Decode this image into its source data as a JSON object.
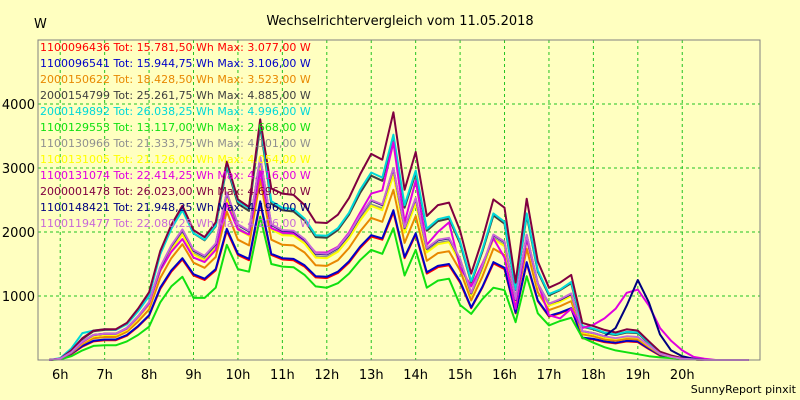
{
  "chart_data": {
    "type": "line",
    "title": "Wechselrichtervergleich vom 11.05.2018",
    "ylabel": "W",
    "xlabel": "",
    "xlim": [
      5.5,
      21.75
    ],
    "ylim": [
      0,
      5000
    ],
    "yticks": [
      1000,
      2000,
      3000,
      4000
    ],
    "xticks": [
      {
        "x": 6,
        "label": "6h"
      },
      {
        "x": 7,
        "label": "7h"
      },
      {
        "x": 8,
        "label": "8h"
      },
      {
        "x": 9,
        "label": "9h"
      },
      {
        "x": 10,
        "label": "10h"
      },
      {
        "x": 11,
        "label": "11h"
      },
      {
        "x": 12,
        "label": "12h"
      },
      {
        "x": 13,
        "label": "13h"
      },
      {
        "x": 14,
        "label": "14h"
      },
      {
        "x": 15,
        "label": "15h"
      },
      {
        "x": 16,
        "label": "16h"
      },
      {
        "x": 17,
        "label": "17h"
      },
      {
        "x": 18,
        "label": "18h"
      },
      {
        "x": 19,
        "label": "19h"
      },
      {
        "x": 20,
        "label": "20h"
      }
    ],
    "grid": true,
    "legend_position": "top-left",
    "x": [
      5.75,
      6,
      6.25,
      6.5,
      6.75,
      7,
      7.25,
      7.5,
      7.75,
      8,
      8.25,
      8.5,
      8.75,
      9,
      9.25,
      9.5,
      9.75,
      10,
      10.25,
      10.5,
      10.75,
      11,
      11.25,
      11.5,
      11.75,
      12,
      12.25,
      12.5,
      12.75,
      13,
      13.25,
      13.5,
      13.75,
      14,
      14.25,
      14.5,
      14.75,
      15,
      15.25,
      15.5,
      15.75,
      16,
      16.25,
      16.5,
      16.75,
      17,
      17.25,
      17.5,
      17.75,
      18,
      18.25,
      18.5,
      18.75,
      19,
      19.25,
      19.5,
      19.75,
      20,
      20.25,
      20.5,
      20.75,
      21,
      21.25,
      21.5
    ],
    "series": [
      {
        "legend": "1100096436 Tot: 15.781,50 Wh Max: 3.077,00 W",
        "color": "#ff0000",
        "values": [
          0,
          20,
          90,
          210,
          290,
          310,
          310,
          380,
          520,
          690,
          1110,
          1380,
          1570,
          1320,
          1250,
          1400,
          2020,
          1640,
          1560,
          2450,
          1640,
          1570,
          1560,
          1460,
          1290,
          1280,
          1360,
          1520,
          1750,
          1930,
          1880,
          2310,
          1590,
          1960,
          1350,
          1450,
          1480,
          1210,
          810,
          1130,
          1510,
          1420,
          730,
          1510,
          920,
          680,
          730,
          800,
          340,
          320,
          280,
          260,
          290,
          280,
          170,
          70,
          40,
          20,
          10,
          0,
          0,
          0,
          0,
          0
        ]
      },
      {
        "legend": "1100096541 Tot: 15.944,75 Wh Max: 3.106,00 W",
        "color": "#0000c8",
        "values": [
          0,
          20,
          100,
          220,
          300,
          320,
          320,
          390,
          530,
          700,
          1130,
          1400,
          1590,
          1340,
          1270,
          1420,
          2050,
          1660,
          1580,
          2480,
          1660,
          1590,
          1580,
          1480,
          1310,
          1300,
          1380,
          1540,
          1770,
          1950,
          1900,
          2340,
          1610,
          1980,
          1370,
          1470,
          1500,
          1230,
          820,
          1140,
          1530,
          1440,
          740,
          1530,
          930,
          690,
          740,
          810,
          350,
          330,
          290,
          270,
          300,
          290,
          180,
          80,
          40,
          20,
          10,
          0,
          0,
          0,
          0,
          0
        ]
      },
      {
        "legend": "2000150622 Tot: 18.428,50 Wh Max: 3.523,00 W",
        "color": "#e88800",
        "values": [
          0,
          20,
          110,
          250,
          340,
          360,
          360,
          440,
          600,
          790,
          1280,
          1590,
          1810,
          1520,
          1440,
          1610,
          2320,
          1880,
          1790,
          2820,
          1880,
          1800,
          1790,
          1680,
          1480,
          1470,
          1560,
          1750,
          2010,
          2220,
          2160,
          2660,
          1830,
          2250,
          1550,
          1670,
          1700,
          1400,
          930,
          1300,
          1740,
          1640,
          840,
          1740,
          1060,
          780,
          840,
          920,
          400,
          370,
          320,
          300,
          330,
          320,
          200,
          90,
          50,
          20,
          10,
          0,
          0,
          0,
          0,
          0
        ]
      },
      {
        "legend": "2000154799 Tot: 25.261,75 Wh Max: 4.885,00 W",
        "color": "#404040",
        "values": [
          0,
          20,
          140,
          330,
          450,
          470,
          470,
          570,
          780,
          1030,
          1660,
          2060,
          2350,
          1980,
          1870,
          2090,
          3020,
          2440,
          2330,
          3660,
          2440,
          2340,
          2320,
          2180,
          1920,
          1910,
          2030,
          2270,
          2610,
          2880,
          2800,
          3460,
          2380,
          2920,
          2020,
          2170,
          2210,
          1820,
          1210,
          1690,
          2260,
          2130,
          1090,
          2260,
          1380,
          1010,
          1090,
          1200,
          520,
          480,
          420,
          390,
          430,
          420,
          260,
          120,
          60,
          30,
          10,
          0,
          0,
          0,
          0,
          0
        ]
      },
      {
        "legend": "2000149892 Tot: 26.038,25 Wh Max: 4.996,00 W",
        "color": "#00d8d8",
        "values": [
          0,
          30,
          180,
          420,
          460,
          480,
          470,
          560,
          760,
          1000,
          1650,
          2050,
          2340,
          1980,
          1880,
          2100,
          3050,
          2480,
          2370,
          3720,
          2480,
          2380,
          2360,
          2210,
          1950,
          1940,
          2060,
          2300,
          2660,
          2930,
          2850,
          3520,
          2420,
          2960,
          2050,
          2200,
          2240,
          1850,
          1230,
          1720,
          2290,
          2160,
          1100,
          2290,
          1400,
          1030,
          1100,
          1220,
          530,
          490,
          430,
          400,
          440,
          430,
          270,
          120,
          60,
          30,
          10,
          0,
          0,
          0,
          0,
          0
        ]
      },
      {
        "legend": "1100129553 Tot: 13.117,00 Wh Max: 2.668,00 W",
        "color": "#10e010",
        "values": [
          0,
          10,
          60,
          150,
          220,
          230,
          230,
          290,
          390,
          520,
          900,
          1150,
          1300,
          970,
          970,
          1130,
          1800,
          1420,
          1380,
          2240,
          1500,
          1460,
          1450,
          1330,
          1150,
          1130,
          1200,
          1350,
          1560,
          1720,
          1660,
          2060,
          1320,
          1720,
          1130,
          1240,
          1270,
          860,
          720,
          950,
          1130,
          1090,
          590,
          1310,
          730,
          540,
          610,
          660,
          350,
          270,
          200,
          150,
          120,
          90,
          60,
          40,
          30,
          20,
          10,
          0,
          0,
          0,
          0,
          0
        ]
      },
      {
        "legend": "1100130966 Tot: 21.333,75 Wh Max: 4.101,00 W",
        "color": "#909090",
        "values": [
          0,
          20,
          120,
          280,
          380,
          400,
          400,
          480,
          660,
          870,
          1400,
          1740,
          1980,
          1670,
          1580,
          1770,
          2550,
          2060,
          1960,
          3090,
          2060,
          1970,
          1960,
          1840,
          1620,
          1610,
          1710,
          1920,
          2200,
          2430,
          2370,
          2920,
          2010,
          2460,
          1700,
          1830,
          1860,
          1530,
          1020,
          1430,
          1910,
          1800,
          920,
          1910,
          1160,
          860,
          920,
          1010,
          440,
          410,
          360,
          330,
          360,
          350,
          220,
          100,
          50,
          20,
          10,
          0,
          0,
          0,
          0,
          0
        ]
      },
      {
        "legend": "1100131005 Tot: 21.126,00 Wh Max: 4.054,00 W",
        "color": "#ffff00",
        "values": [
          0,
          20,
          120,
          270,
          370,
          390,
          390,
          470,
          650,
          860,
          1380,
          1720,
          1960,
          1650,
          1560,
          1750,
          2520,
          2040,
          1940,
          3060,
          2040,
          1950,
          1940,
          1820,
          1600,
          1590,
          1690,
          1900,
          2180,
          2410,
          2340,
          2890,
          1990,
          2440,
          1680,
          1810,
          1840,
          1520,
          1010,
          1410,
          1890,
          1780,
          910,
          1890,
          1150,
          850,
          910,
          1000,
          430,
          400,
          350,
          330,
          360,
          350,
          220,
          100,
          50,
          20,
          10,
          0,
          0,
          0,
          0,
          0
        ]
      },
      {
        "legend": "1100131074 Tot: 22.414,25 Wh Max: 4.716,00 W",
        "color": "#e000e0",
        "values": [
          0,
          20,
          120,
          280,
          390,
          410,
          410,
          490,
          670,
          880,
          1400,
          1690,
          1890,
          1600,
          1530,
          1720,
          2450,
          2040,
          1960,
          2950,
          2060,
          1990,
          1980,
          1870,
          1680,
          1680,
          1770,
          1990,
          2300,
          2600,
          2650,
          3400,
          2150,
          2800,
          1800,
          2000,
          2150,
          1450,
          1150,
          1500,
          1900,
          1600,
          800,
          1900,
          1200,
          700,
          650,
          800,
          500,
          550,
          650,
          800,
          1050,
          1100,
          850,
          500,
          300,
          150,
          50,
          20,
          0,
          0,
          0,
          0
        ]
      },
      {
        "legend": "2000001478 Tot: 26.023,00 Wh Max: 4.696,00 W",
        "color": "#800040",
        "values": [
          0,
          20,
          150,
          340,
          460,
          480,
          480,
          580,
          800,
          1060,
          1700,
          2110,
          2410,
          2030,
          1920,
          2150,
          3100,
          2510,
          2390,
          3760,
          2680,
          2600,
          2580,
          2420,
          2150,
          2140,
          2270,
          2530,
          2900,
          3220,
          3130,
          3870,
          2660,
          3250,
          2250,
          2420,
          2460,
          2020,
          1350,
          1880,
          2510,
          2380,
          1210,
          2520,
          1540,
          1130,
          1210,
          1330,
          580,
          530,
          470,
          430,
          480,
          460,
          290,
          130,
          70,
          30,
          10,
          0,
          0,
          0,
          0,
          0
        ]
      },
      {
        "legend": "1100148421 Tot: 21.948,25 Wh Max: 4.196,00 W",
        "color": "#000080",
        "values": [
          0,
          20,
          120,
          290,
          390,
          410,
          410,
          500,
          680,
          900,
          1440,
          1780,
          2030,
          1710,
          1620,
          1810,
          2610,
          2110,
          2010,
          3160,
          2110,
          2020,
          2010,
          1880,
          1660,
          1650,
          1750,
          1960,
          2250,
          2490,
          2420,
          2990,
          2060,
          2520,
          1740,
          1870,
          1900,
          1570,
          1040,
          1460,
          1950,
          1840,
          940,
          1950,
          1190,
          880,
          940,
          1030,
          450,
          420,
          370,
          500,
          850,
          1250,
          900,
          400,
          150,
          60,
          20,
          0,
          0,
          0,
          0,
          0
        ]
      },
      {
        "legend": "1100119477 Tot: 22.080,25 Wh Max: 4.206,00 W",
        "color": "#c868d8",
        "values": [
          0,
          20,
          120,
          290,
          390,
          410,
          410,
          500,
          680,
          900,
          1450,
          1790,
          2040,
          1720,
          1630,
          1820,
          2620,
          2120,
          2020,
          3170,
          2120,
          2030,
          2020,
          1890,
          1670,
          1660,
          1760,
          1970,
          2260,
          2500,
          2430,
          3000,
          2070,
          2530,
          1750,
          1880,
          1910,
          1580,
          1050,
          1470,
          1960,
          1850,
          950,
          1960,
          1190,
          880,
          950,
          1040,
          450,
          420,
          370,
          340,
          370,
          360,
          230,
          100,
          50,
          20,
          10,
          0,
          0,
          0,
          0,
          0
        ]
      }
    ],
    "footer": "SunnyReport pinxit"
  }
}
